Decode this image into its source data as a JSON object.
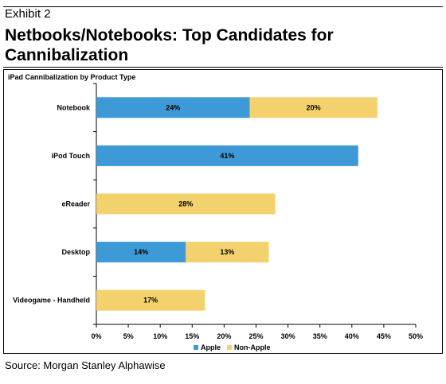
{
  "header": {
    "exhibit_label": "Exhibit 2",
    "title": "Netbooks/Notebooks: Top Candidates for Cannibalization"
  },
  "footer": {
    "source": "Source: Morgan Stanley Alphawise"
  },
  "chart_data": {
    "type": "bar",
    "orientation": "horizontal",
    "stacked": true,
    "title": "iPad Cannibalization by Product Type",
    "categories": [
      "Notebook",
      "iPod Touch",
      "eReader",
      "Desktop",
      "Videogame - Handheld"
    ],
    "series": [
      {
        "name": "Apple",
        "color": "#3e9ad6",
        "values": [
          24,
          41,
          null,
          14,
          null
        ],
        "labels": [
          "24%",
          "41%",
          "",
          "14%",
          ""
        ]
      },
      {
        "name": "Non-Apple",
        "color": "#f3d26e",
        "values": [
          20,
          null,
          28,
          13,
          17
        ],
        "labels": [
          "20%",
          "",
          "28%",
          "13%",
          "17%"
        ]
      }
    ],
    "xlim": [
      0,
      50
    ],
    "xticks": [
      "0%",
      "5%",
      "10%",
      "15%",
      "20%",
      "25%",
      "30%",
      "35%",
      "40%",
      "45%",
      "50%"
    ],
    "grid": false,
    "legend_position": "bottom"
  }
}
